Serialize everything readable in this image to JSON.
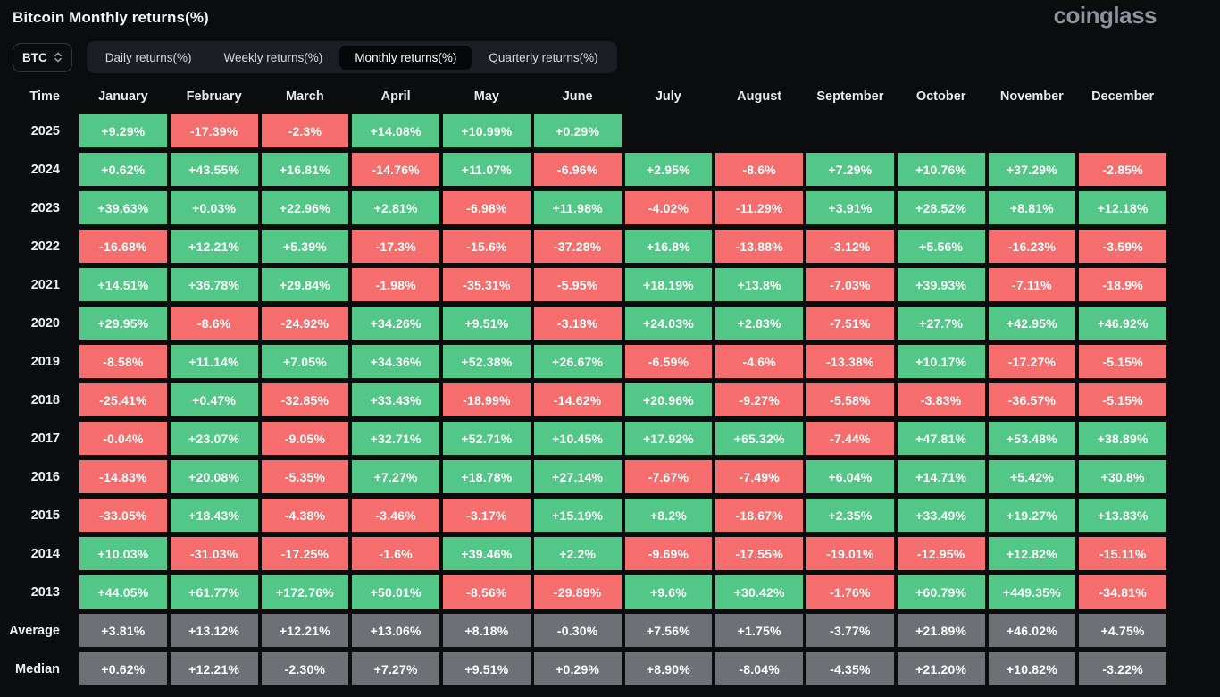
{
  "header": {
    "title": "Bitcoin Monthly returns(%)",
    "logo": "coinglass"
  },
  "toolbar": {
    "symbol_select": {
      "value": "BTC"
    },
    "tabs": [
      {
        "label": "Daily returns(%)",
        "active": false
      },
      {
        "label": "Weekly returns(%)",
        "active": false
      },
      {
        "label": "Monthly returns(%)",
        "active": true
      },
      {
        "label": "Quarterly returns(%)",
        "active": false
      }
    ]
  },
  "colors": {
    "positive": "#53c787",
    "negative": "#f56d6d",
    "summary": "#6d7176",
    "background": "#0a0c0e"
  },
  "table": {
    "columns": [
      "Time",
      "January",
      "February",
      "March",
      "April",
      "May",
      "June",
      "July",
      "August",
      "September",
      "October",
      "November",
      "December"
    ],
    "rows": [
      {
        "label": "2025",
        "type": "year",
        "values": [
          "+9.29%",
          "-17.39%",
          "-2.3%",
          "+14.08%",
          "+10.99%",
          "+0.29%"
        ]
      },
      {
        "label": "2024",
        "type": "year",
        "values": [
          "+0.62%",
          "+43.55%",
          "+16.81%",
          "-14.76%",
          "+11.07%",
          "-6.96%",
          "+2.95%",
          "-8.6%",
          "+7.29%",
          "+10.76%",
          "+37.29%",
          "-2.85%"
        ]
      },
      {
        "label": "2023",
        "type": "year",
        "values": [
          "+39.63%",
          "+0.03%",
          "+22.96%",
          "+2.81%",
          "-6.98%",
          "+11.98%",
          "-4.02%",
          "-11.29%",
          "+3.91%",
          "+28.52%",
          "+8.81%",
          "+12.18%"
        ]
      },
      {
        "label": "2022",
        "type": "year",
        "values": [
          "-16.68%",
          "+12.21%",
          "+5.39%",
          "-17.3%",
          "-15.6%",
          "-37.28%",
          "+16.8%",
          "-13.88%",
          "-3.12%",
          "+5.56%",
          "-16.23%",
          "-3.59%"
        ]
      },
      {
        "label": "2021",
        "type": "year",
        "values": [
          "+14.51%",
          "+36.78%",
          "+29.84%",
          "-1.98%",
          "-35.31%",
          "-5.95%",
          "+18.19%",
          "+13.8%",
          "-7.03%",
          "+39.93%",
          "-7.11%",
          "-18.9%"
        ]
      },
      {
        "label": "2020",
        "type": "year",
        "values": [
          "+29.95%",
          "-8.6%",
          "-24.92%",
          "+34.26%",
          "+9.51%",
          "-3.18%",
          "+24.03%",
          "+2.83%",
          "-7.51%",
          "+27.7%",
          "+42.95%",
          "+46.92%"
        ]
      },
      {
        "label": "2019",
        "type": "year",
        "values": [
          "-8.58%",
          "+11.14%",
          "+7.05%",
          "+34.36%",
          "+52.38%",
          "+26.67%",
          "-6.59%",
          "-4.6%",
          "-13.38%",
          "+10.17%",
          "-17.27%",
          "-5.15%"
        ]
      },
      {
        "label": "2018",
        "type": "year",
        "values": [
          "-25.41%",
          "+0.47%",
          "-32.85%",
          "+33.43%",
          "-18.99%",
          "-14.62%",
          "+20.96%",
          "-9.27%",
          "-5.58%",
          "-3.83%",
          "-36.57%",
          "-5.15%"
        ]
      },
      {
        "label": "2017",
        "type": "year",
        "values": [
          "-0.04%",
          "+23.07%",
          "-9.05%",
          "+32.71%",
          "+52.71%",
          "+10.45%",
          "+17.92%",
          "+65.32%",
          "-7.44%",
          "+47.81%",
          "+53.48%",
          "+38.89%"
        ]
      },
      {
        "label": "2016",
        "type": "year",
        "values": [
          "-14.83%",
          "+20.08%",
          "-5.35%",
          "+7.27%",
          "+18.78%",
          "+27.14%",
          "-7.67%",
          "-7.49%",
          "+6.04%",
          "+14.71%",
          "+5.42%",
          "+30.8%"
        ]
      },
      {
        "label": "2015",
        "type": "year",
        "values": [
          "-33.05%",
          "+18.43%",
          "-4.38%",
          "-3.46%",
          "-3.17%",
          "+15.19%",
          "+8.2%",
          "-18.67%",
          "+2.35%",
          "+33.49%",
          "+19.27%",
          "+13.83%"
        ]
      },
      {
        "label": "2014",
        "type": "year",
        "values": [
          "+10.03%",
          "-31.03%",
          "-17.25%",
          "-1.6%",
          "+39.46%",
          "+2.2%",
          "-9.69%",
          "-17.55%",
          "-19.01%",
          "-12.95%",
          "+12.82%",
          "-15.11%"
        ]
      },
      {
        "label": "2013",
        "type": "year",
        "values": [
          "+44.05%",
          "+61.77%",
          "+172.76%",
          "+50.01%",
          "-8.56%",
          "-29.89%",
          "+9.6%",
          "+30.42%",
          "-1.76%",
          "+60.79%",
          "+449.35%",
          "-34.81%"
        ]
      },
      {
        "label": "Average",
        "type": "summary",
        "values": [
          "+3.81%",
          "+13.12%",
          "+12.21%",
          "+13.06%",
          "+8.18%",
          "-0.30%",
          "+7.56%",
          "+1.75%",
          "-3.77%",
          "+21.89%",
          "+46.02%",
          "+4.75%"
        ]
      },
      {
        "label": "Median",
        "type": "summary",
        "values": [
          "+0.62%",
          "+12.21%",
          "-2.30%",
          "+7.27%",
          "+9.51%",
          "+0.29%",
          "+8.90%",
          "-8.04%",
          "-4.35%",
          "+21.20%",
          "+10.82%",
          "-3.22%"
        ]
      }
    ]
  }
}
